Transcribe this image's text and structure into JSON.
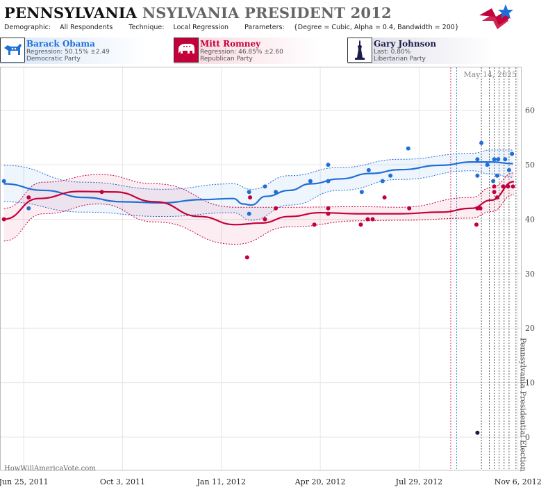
{
  "header": {
    "title_main": "PENNSYLVANIA",
    "title_rest": "NSYLVANIA PRESIDENT 2012",
    "demographic_label": "Demographic:",
    "demographic_value": "All Respondents",
    "technique_label": "Technique:",
    "technique_value": "Local Regression",
    "parameters_label": "Parameters:",
    "parameters_value": "{Degree = Cubic, Alpha = 0.4, Bandwidth = 200}"
  },
  "candidates": [
    {
      "name": "Barack Obama",
      "stat": "Regression: 50.15% ±2.49",
      "party": "Democratic Party",
      "color": "#1f6fd6",
      "icon": "donkey-icon"
    },
    {
      "name": "Mitt Romney",
      "stat": "Regression: 46.85% ±2.60",
      "party": "Republican Party",
      "color": "#c4003a",
      "icon": "elephant-icon"
    },
    {
      "name": "Gary Johnson",
      "stat": "Last: 0.80%",
      "party": "Libertarian Party",
      "color": "#1c1c4a",
      "icon": "statue-of-liberty-icon"
    }
  ],
  "colors": {
    "obama": "#1f6fd6",
    "romney": "#c4003a",
    "johnson": "#1c1c4a"
  },
  "chart_data": {
    "type": "scatter",
    "date_label": "May 14, 2025",
    "election_label": "Pennsylvania Presidential Election",
    "watermark": "HowWillAmericaVote.com",
    "x_tick_labels": [
      "Jun 25, 2011",
      "Oct 3, 2011",
      "Jan 11, 2012",
      "Apr 20, 2012",
      "Jul 29, 2012",
      "Nov 6, 2012"
    ],
    "x_range": [
      "2011-06-01",
      "2012-11-09"
    ],
    "y_ticks": [
      0,
      10,
      20,
      30,
      40,
      50,
      60
    ],
    "ylim": [
      -6,
      68
    ],
    "grid": true,
    "series": [
      {
        "name": "Barack Obama",
        "points": [
          [
            "2011-06-05",
            47
          ],
          [
            "2011-06-30",
            42
          ],
          [
            "2012-02-08",
            41
          ],
          [
            "2012-02-08",
            45
          ],
          [
            "2012-02-24",
            46
          ],
          [
            "2012-03-06",
            45
          ],
          [
            "2012-04-10",
            47
          ],
          [
            "2012-04-28",
            47
          ],
          [
            "2012-04-28",
            50
          ],
          [
            "2012-06-01",
            45
          ],
          [
            "2012-06-08",
            49
          ],
          [
            "2012-06-22",
            47
          ],
          [
            "2012-06-30",
            48
          ],
          [
            "2012-07-18",
            53
          ],
          [
            "2012-09-26",
            48
          ],
          [
            "2012-09-26",
            51
          ],
          [
            "2012-09-30",
            54
          ],
          [
            "2012-10-06",
            50
          ],
          [
            "2012-10-12",
            47
          ],
          [
            "2012-10-13",
            51
          ],
          [
            "2012-10-16",
            48
          ],
          [
            "2012-10-17",
            51
          ],
          [
            "2012-10-24",
            51
          ],
          [
            "2012-10-28",
            49
          ],
          [
            "2012-10-31",
            52
          ]
        ],
        "trend": [
          [
            "2011-06-05",
            46.5
          ],
          [
            "2011-07-15",
            45.3
          ],
          [
            "2011-08-25",
            44.0
          ],
          [
            "2011-10-03",
            43.2
          ],
          [
            "2011-11-12",
            43.0
          ],
          [
            "2011-12-22",
            43.6
          ],
          [
            "2012-01-23",
            43.8
          ],
          [
            "2012-02-02",
            42.8
          ],
          [
            "2012-02-10",
            42.6
          ],
          [
            "2012-02-25",
            44.2
          ],
          [
            "2012-03-20",
            45.3
          ],
          [
            "2012-04-10",
            46.5
          ],
          [
            "2012-05-10",
            47.4
          ],
          [
            "2012-06-10",
            48.4
          ],
          [
            "2012-07-10",
            49.1
          ],
          [
            "2012-08-20",
            49.9
          ],
          [
            "2012-09-20",
            50.5
          ],
          [
            "2012-10-10",
            50.5
          ],
          [
            "2012-11-01",
            50.2
          ]
        ],
        "band": [
          [
            "2011-06-05",
            43.2,
            49.9
          ],
          [
            "2011-08-25",
            41.3,
            46.8
          ],
          [
            "2011-11-12",
            40.5,
            45.5
          ],
          [
            "2012-01-23",
            41.2,
            46.5
          ],
          [
            "2012-02-10",
            39.8,
            45.5
          ],
          [
            "2012-03-20",
            42.6,
            48.0
          ],
          [
            "2012-05-10",
            45.3,
            49.5
          ],
          [
            "2012-07-10",
            47.3,
            51.0
          ],
          [
            "2012-09-20",
            48.9,
            52.1
          ],
          [
            "2012-10-10",
            48.3,
            52.7
          ],
          [
            "2012-11-01",
            47.7,
            52.7
          ]
        ]
      },
      {
        "name": "Mitt Romney",
        "points": [
          [
            "2011-06-05",
            40
          ],
          [
            "2011-06-30",
            44
          ],
          [
            "2011-09-12",
            45
          ],
          [
            "2012-02-06",
            33
          ],
          [
            "2012-02-09",
            44
          ],
          [
            "2012-02-24",
            40
          ],
          [
            "2012-03-06",
            42
          ],
          [
            "2012-04-14",
            39
          ],
          [
            "2012-04-28",
            41
          ],
          [
            "2012-04-28",
            42
          ],
          [
            "2012-05-31",
            39
          ],
          [
            "2012-06-07",
            40
          ],
          [
            "2012-06-12",
            40
          ],
          [
            "2012-06-24",
            44
          ],
          [
            "2012-07-19",
            42
          ],
          [
            "2012-09-25",
            39
          ],
          [
            "2012-09-26",
            42
          ],
          [
            "2012-09-29",
            42
          ],
          [
            "2012-10-13",
            45
          ],
          [
            "2012-10-13",
            46
          ],
          [
            "2012-10-16",
            44
          ],
          [
            "2012-10-22",
            46
          ],
          [
            "2012-10-27",
            46
          ],
          [
            "2012-11-01",
            46
          ]
        ],
        "trend": [
          [
            "2011-06-05",
            40.0
          ],
          [
            "2011-07-10",
            43.8
          ],
          [
            "2011-08-20",
            45.1
          ],
          [
            "2011-09-25",
            45.0
          ],
          [
            "2011-11-05",
            43.2
          ],
          [
            "2011-12-20",
            40.5
          ],
          [
            "2012-01-25",
            39.0
          ],
          [
            "2012-02-20",
            39.3
          ],
          [
            "2012-03-20",
            40.5
          ],
          [
            "2012-04-20",
            41.2
          ],
          [
            "2012-05-30",
            41.0
          ],
          [
            "2012-07-10",
            41.0
          ],
          [
            "2012-08-20",
            41.3
          ],
          [
            "2012-09-20",
            42.0
          ],
          [
            "2012-10-10",
            43.5
          ],
          [
            "2012-11-02",
            46.9
          ]
        ],
        "band": [
          [
            "2011-06-05",
            36.0,
            42.0
          ],
          [
            "2011-07-15",
            41.0,
            46.8
          ],
          [
            "2011-09-10",
            42.8,
            48.2
          ],
          [
            "2011-11-05",
            39.5,
            46.5
          ],
          [
            "2012-01-25",
            35.4,
            42.2
          ],
          [
            "2012-03-20",
            38.6,
            42.2
          ],
          [
            "2012-05-30",
            39.7,
            42.3
          ],
          [
            "2012-07-10",
            39.8,
            42.2
          ],
          [
            "2012-09-20",
            40.2,
            44.0
          ],
          [
            "2012-10-10",
            41.4,
            45.8
          ],
          [
            "2012-11-02",
            44.5,
            48.5
          ]
        ]
      },
      {
        "name": "Gary Johnson",
        "points": [
          [
            "2012-09-26",
            0.8
          ]
        ]
      }
    ]
  }
}
